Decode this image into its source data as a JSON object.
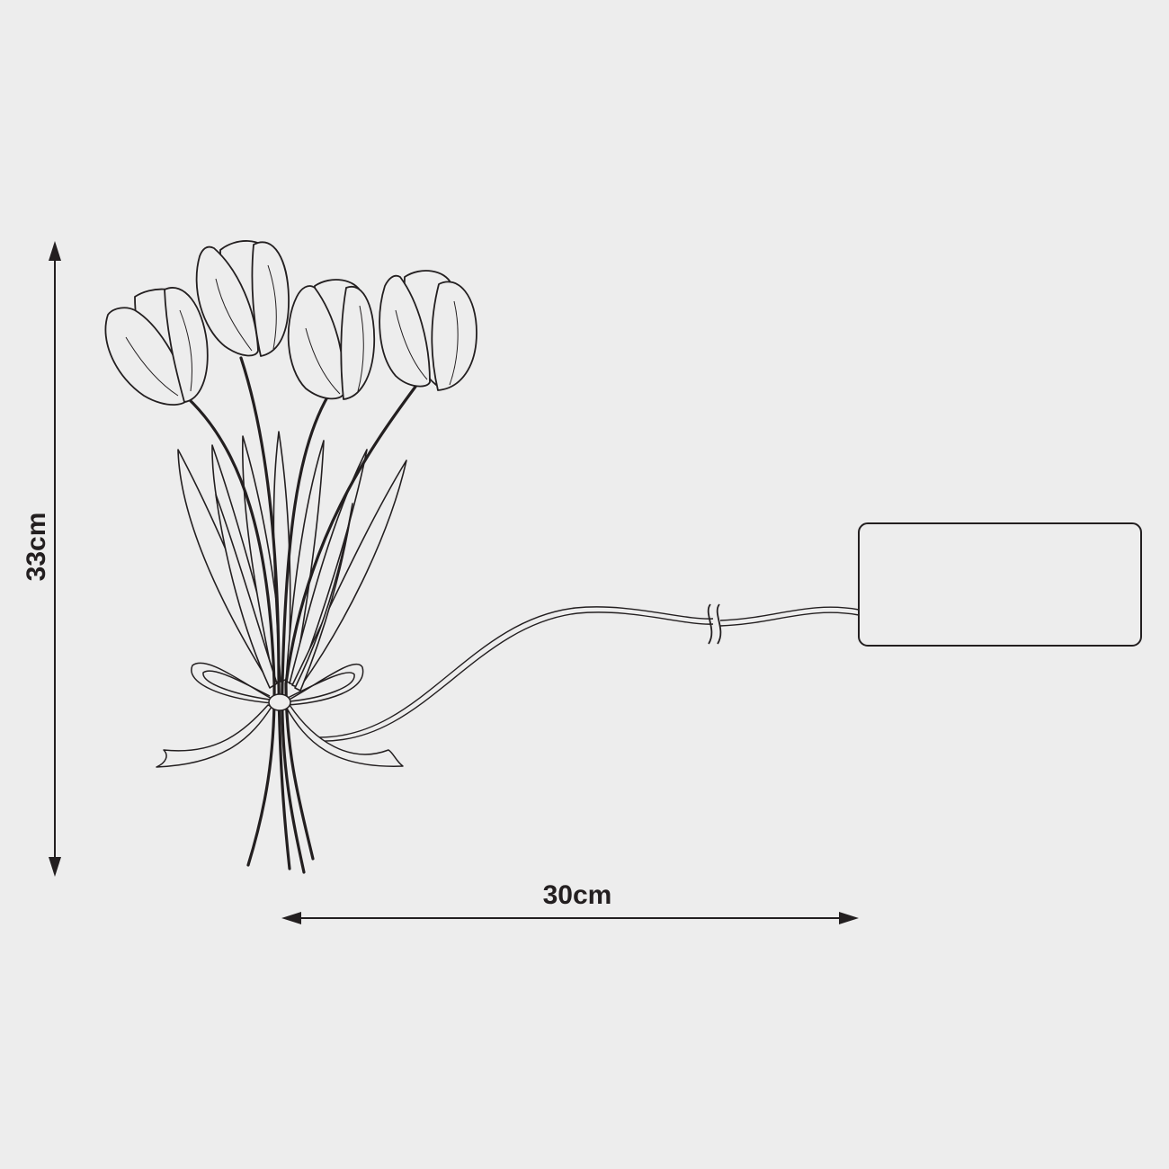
{
  "dimensions": {
    "height_label": "33cm",
    "width_label": "30cm"
  },
  "colors": {
    "background": "#ededed",
    "line": "#231f20",
    "battery_fill": "#ededed"
  }
}
